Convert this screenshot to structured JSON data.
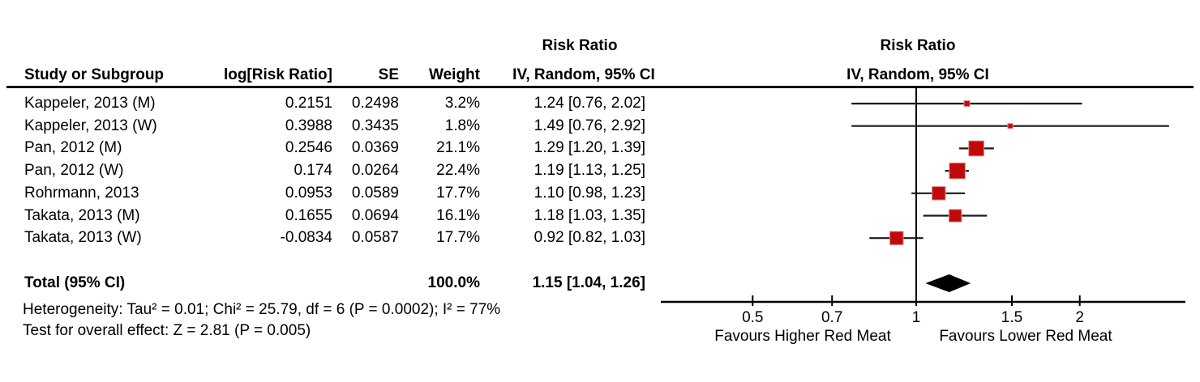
{
  "table": {
    "headers": {
      "study": "Study or Subgroup",
      "logrr": "log[Risk Ratio]",
      "se": "SE",
      "weight": "Weight",
      "ci_top": "Risk Ratio",
      "ci_bottom": "IV, Random, 95% CI"
    },
    "rows": [
      {
        "study": "Kappeler, 2013 (M)",
        "logrr": "0.2151",
        "se": "0.2498",
        "weight": "3.2%",
        "ci": "1.24 [0.76, 2.02]"
      },
      {
        "study": "Kappeler, 2013 (W)",
        "logrr": "0.3988",
        "se": "0.3435",
        "weight": "1.8%",
        "ci": "1.49 [0.76, 2.92]"
      },
      {
        "study": "Pan, 2012 (M)",
        "logrr": "0.2546",
        "se": "0.0369",
        "weight": "21.1%",
        "ci": "1.29 [1.20, 1.39]"
      },
      {
        "study": "Pan, 2012 (W)",
        "logrr": "0.174",
        "se": "0.0264",
        "weight": "22.4%",
        "ci": "1.19 [1.13, 1.25]"
      },
      {
        "study": "Rohrmann, 2013",
        "logrr": "0.0953",
        "se": "0.0589",
        "weight": "17.7%",
        "ci": "1.10 [0.98, 1.23]"
      },
      {
        "study": "Takata, 2013 (M)",
        "logrr": "0.1655",
        "se": "0.0694",
        "weight": "16.1%",
        "ci": "1.18 [1.03, 1.35]"
      },
      {
        "study": "Takata, 2013 (W)",
        "logrr": "-0.0834",
        "se": "0.0587",
        "weight": "17.7%",
        "ci": "0.92 [0.82, 1.03]"
      }
    ],
    "total": {
      "label": "Total (95% CI)",
      "weight": "100.0%",
      "ci": "1.15 [1.04, 1.26]"
    }
  },
  "footer": {
    "heterogeneity": "Heterogeneity: Tau² = 0.01; Chi² = 25.79, df = 6 (P = 0.0002); I² = 77%",
    "overall_effect": "Test for overall effect: Z = 2.81 (P = 0.005)"
  },
  "plot": {
    "header_top": "Risk Ratio",
    "header_bottom": "IV, Random, 95% CI",
    "favours_left": "Favours Higher Red Meat",
    "favours_right": "Favours Lower Red Meat",
    "marker_color": "#c00a0a",
    "marker_edge_color": "#e09090",
    "line_color": "#1a1a1a",
    "diamond_color": "#000000"
  },
  "chart_data": {
    "type": "forest",
    "title": "Risk Ratio IV, Random, 95% CI",
    "x_scale": "log",
    "x_ticks": [
      0.5,
      0.7,
      1,
      1.5,
      2
    ],
    "x_tick_labels": [
      "0.5",
      "0.7",
      "1",
      "1.5",
      "2"
    ],
    "x_range": [
      0.34,
      3.14
    ],
    "zero_effect_line": 1,
    "studies": [
      {
        "name": "Kappeler, 2013 (M)",
        "log_rr": 0.2151,
        "se": 0.2498,
        "weight_pct": 3.2,
        "rr": 1.24,
        "ci_low": 0.76,
        "ci_high": 2.02
      },
      {
        "name": "Kappeler, 2013 (W)",
        "log_rr": 0.3988,
        "se": 0.3435,
        "weight_pct": 1.8,
        "rr": 1.49,
        "ci_low": 0.76,
        "ci_high": 2.92
      },
      {
        "name": "Pan, 2012 (M)",
        "log_rr": 0.2546,
        "se": 0.0369,
        "weight_pct": 21.1,
        "rr": 1.29,
        "ci_low": 1.2,
        "ci_high": 1.39
      },
      {
        "name": "Pan, 2012 (W)",
        "log_rr": 0.174,
        "se": 0.0264,
        "weight_pct": 22.4,
        "rr": 1.19,
        "ci_low": 1.13,
        "ci_high": 1.25
      },
      {
        "name": "Rohrmann, 2013",
        "log_rr": 0.0953,
        "se": 0.0589,
        "weight_pct": 17.7,
        "rr": 1.1,
        "ci_low": 0.98,
        "ci_high": 1.23
      },
      {
        "name": "Takata, 2013 (M)",
        "log_rr": 0.1655,
        "se": 0.0694,
        "weight_pct": 16.1,
        "rr": 1.18,
        "ci_low": 1.03,
        "ci_high": 1.35
      },
      {
        "name": "Takata, 2013 (W)",
        "log_rr": -0.0834,
        "se": 0.0587,
        "weight_pct": 17.7,
        "rr": 0.92,
        "ci_low": 0.82,
        "ci_high": 1.03
      }
    ],
    "total": {
      "name": "Total (95% CI)",
      "weight_pct": 100.0,
      "rr": 1.15,
      "ci_low": 1.04,
      "ci_high": 1.26
    },
    "heterogeneity": {
      "tau2": 0.01,
      "chi2": 25.79,
      "df": 6,
      "p": 0.0002,
      "i2_pct": 77
    },
    "overall_effect": {
      "z": 2.81,
      "p": 0.005
    },
    "footnote_left": "Favours Higher Red Meat",
    "footnote_right": "Favours Lower Red Meat"
  }
}
